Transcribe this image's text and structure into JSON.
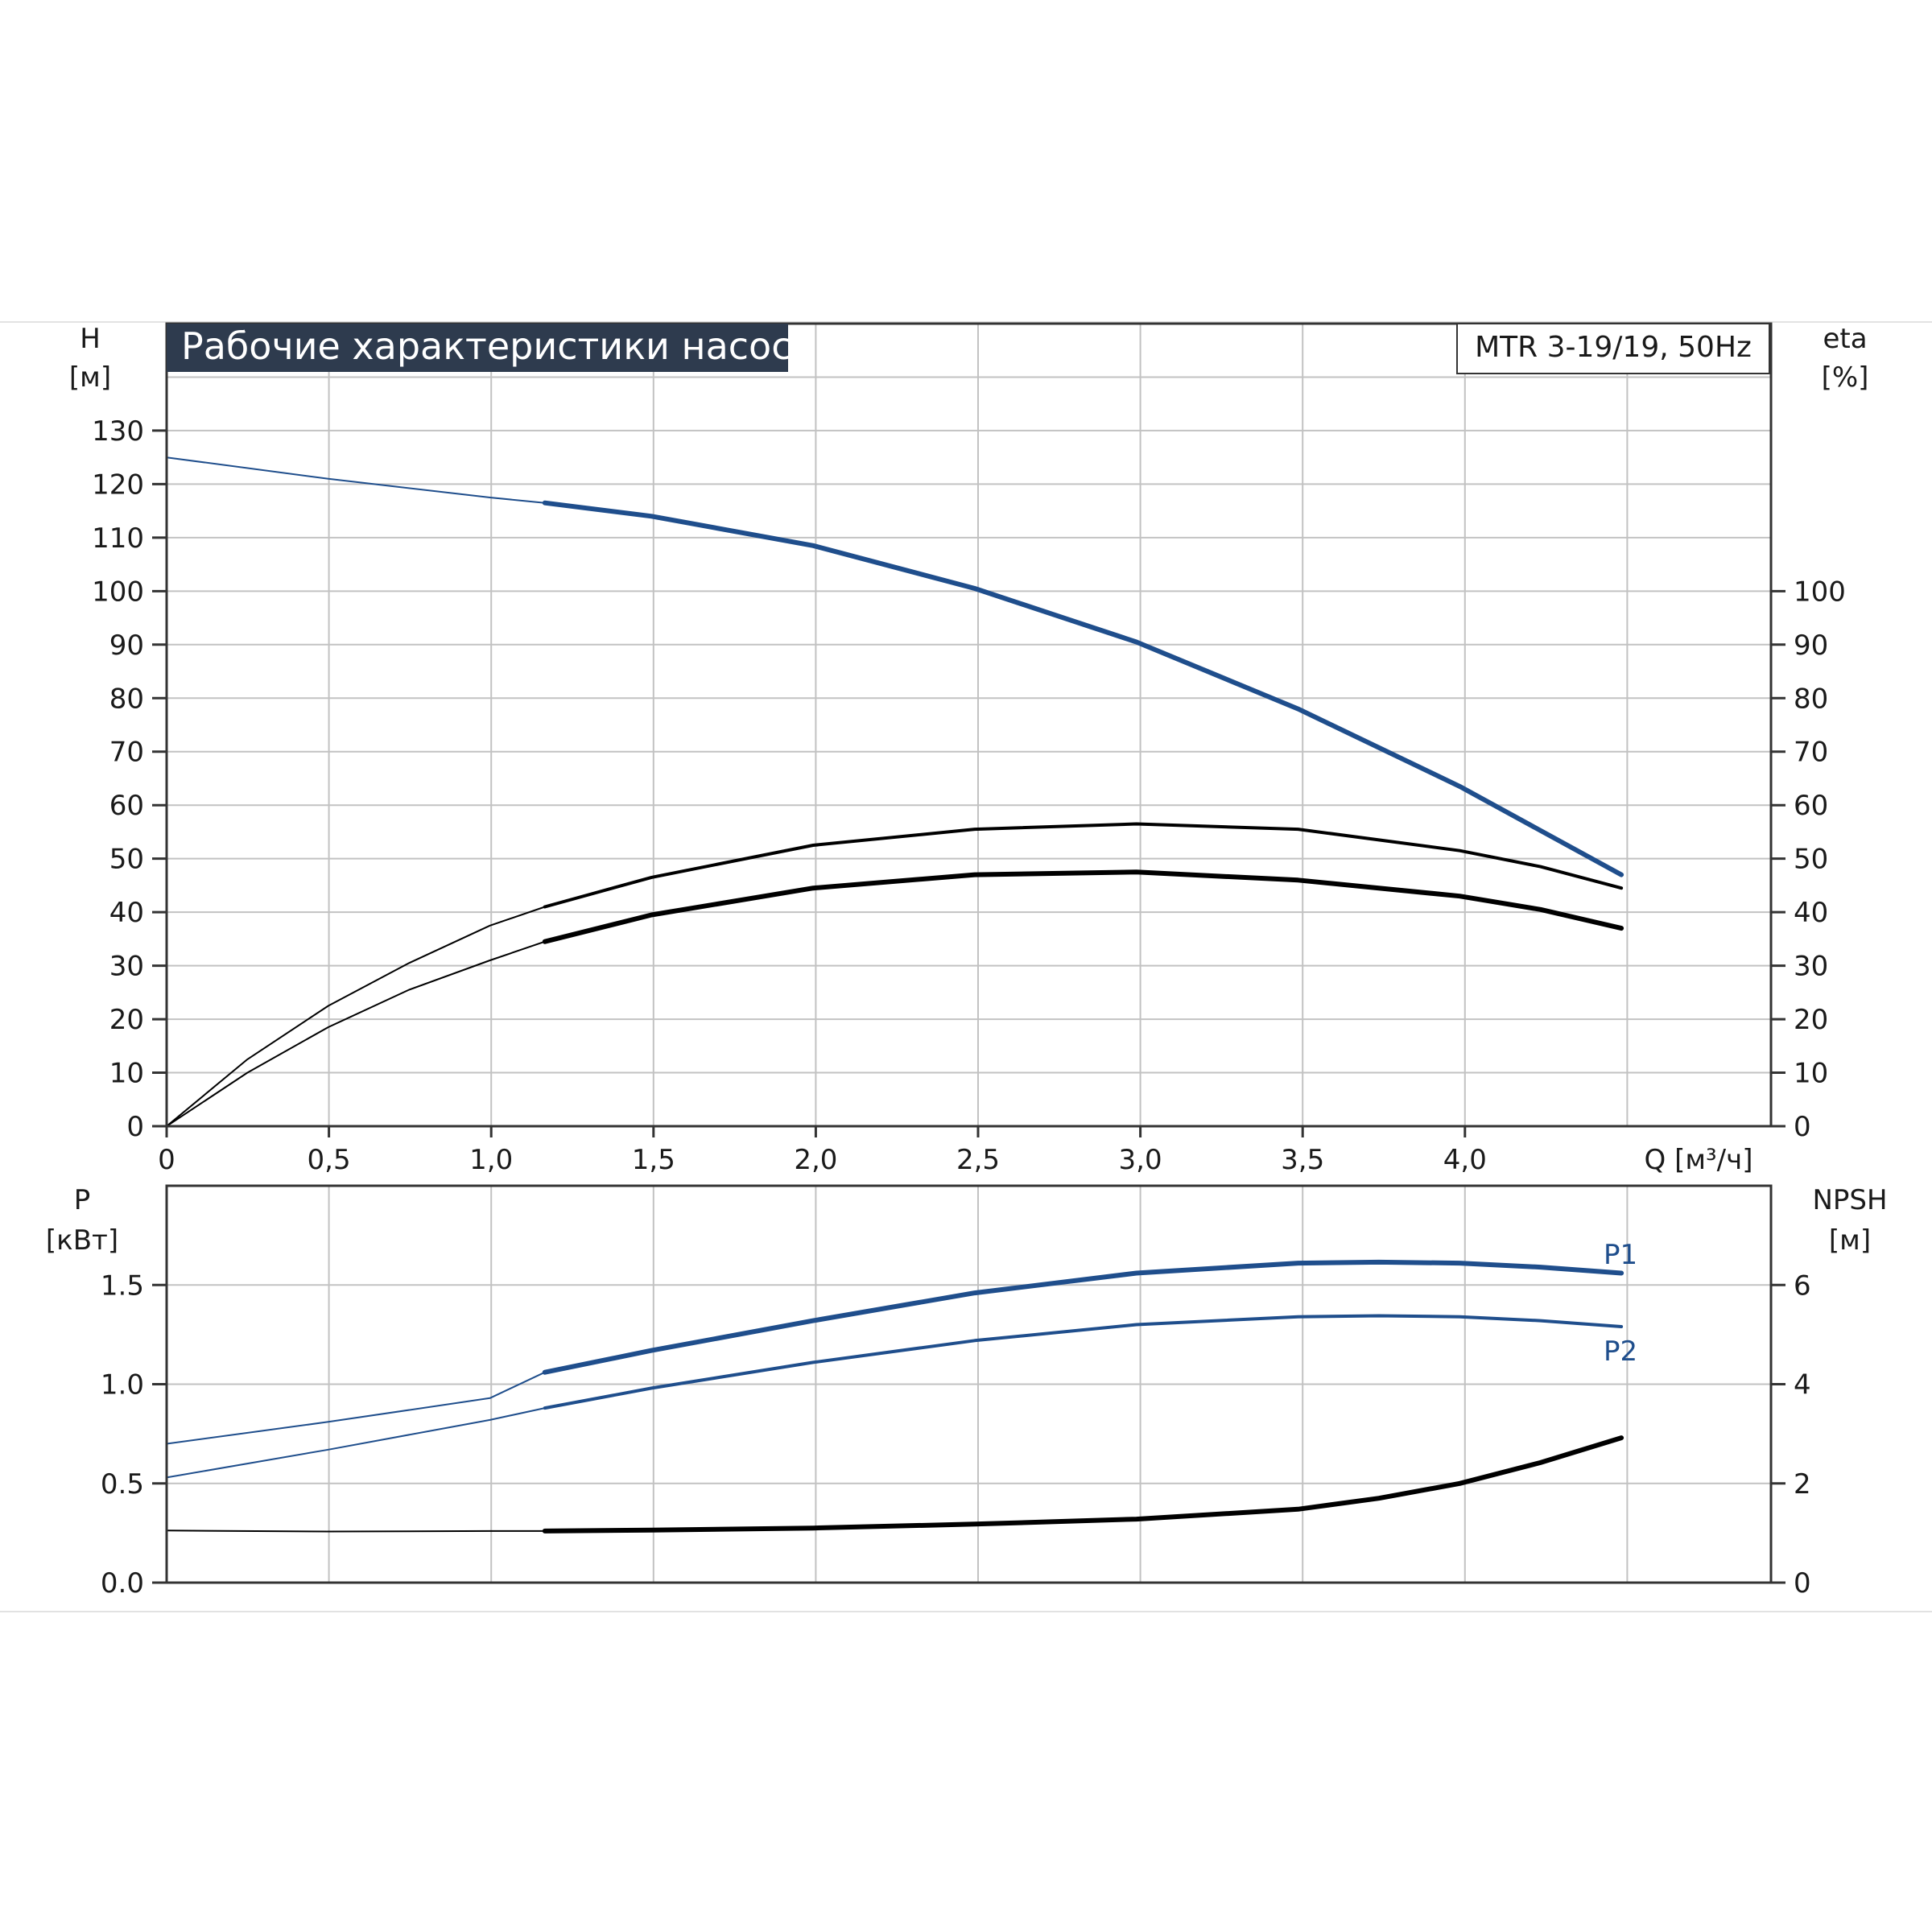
{
  "chart_data": [
    {
      "type": "line",
      "title": "Рабочие характеристики насоса",
      "model_label": "MTR 3-19/19, 50Hz",
      "x_ticks": [
        "0",
        "0,5",
        "1,0",
        "1,5",
        "2,0",
        "2,5",
        "3,0",
        "3,5",
        "4,0"
      ],
      "xlabel": "Q [м³/ч]",
      "xlim": [
        0,
        4.5
      ],
      "y_left": {
        "label_line1": "H",
        "label_line2": "[м]",
        "ylim": [
          0,
          150
        ],
        "ticks": [
          "0",
          "10",
          "20",
          "30",
          "40",
          "50",
          "60",
          "70",
          "80",
          "90",
          "100",
          "110",
          "120",
          "130"
        ]
      },
      "y_right": {
        "label_line1": "eta",
        "label_line2": "[%]",
        "ylim": [
          0,
          150
        ],
        "ticks": [
          "0",
          "10",
          "20",
          "30",
          "40",
          "50",
          "60",
          "70",
          "80",
          "90",
          "100"
        ]
      },
      "grid": true,
      "series": [
        {
          "axis": "left",
          "color": "#1f4e8c",
          "width": 5,
          "opacity_before": 1.17,
          "x": [
            0,
            0.5,
            1.0,
            1.17,
            1.5,
            2.0,
            2.5,
            3.0,
            3.5,
            4.0,
            4.5
          ],
          "y": [
            125,
            121,
            117.5,
            116.5,
            114,
            108.5,
            100.5,
            90.5,
            78,
            63.5,
            47
          ]
        },
        {
          "axis": "right",
          "color": "#000000",
          "width": 3,
          "x": [
            0,
            0.25,
            0.5,
            0.75,
            1.0,
            1.17,
            1.5,
            2.0,
            2.5,
            3.0,
            3.5,
            4.0,
            4.25,
            4.5
          ],
          "y": [
            0,
            12.5,
            22.5,
            30.5,
            37.5,
            41,
            46.5,
            52.5,
            55.5,
            56.5,
            55.5,
            51.5,
            48.5,
            44.5
          ]
        },
        {
          "axis": "right",
          "color": "#000000",
          "width": 5,
          "x": [
            0,
            0.25,
            0.5,
            0.75,
            1.0,
            1.17,
            1.5,
            2.0,
            2.5,
            3.0,
            3.5,
            4.0,
            4.25,
            4.5
          ],
          "y": [
            0,
            10,
            18.5,
            25.5,
            31,
            34.5,
            39.5,
            44.5,
            47,
            47.5,
            46,
            43,
            40.5,
            37
          ]
        }
      ]
    },
    {
      "type": "line",
      "x_ticks": [],
      "xlim": [
        0,
        4.5
      ],
      "y_left": {
        "label_line1": "P",
        "label_line2": "[кВт]",
        "ylim": [
          0,
          2.0
        ],
        "ticks": [
          "0.0",
          "0.5",
          "1.0",
          "1.5"
        ]
      },
      "y_right": {
        "label_line1": "NPSH",
        "label_line2": "[м]",
        "ylim": [
          0,
          8
        ],
        "ticks": [
          "0",
          "2",
          "4",
          "6"
        ]
      },
      "grid": true,
      "series": [
        {
          "name": "P1",
          "axis": "left",
          "color": "#1f4e8c",
          "width": 5,
          "x": [
            0,
            0.5,
            1.0,
            1.17,
            1.5,
            2.0,
            2.5,
            3.0,
            3.5,
            3.75,
            4.0,
            4.25,
            4.5
          ],
          "y": [
            0.7,
            0.81,
            0.93,
            1.06,
            1.17,
            1.32,
            1.46,
            1.56,
            1.61,
            1.615,
            1.61,
            1.59,
            1.56
          ]
        },
        {
          "name": "P2",
          "axis": "left",
          "color": "#1f4e8c",
          "width": 3,
          "x": [
            0,
            0.5,
            1.0,
            1.17,
            1.5,
            2.0,
            2.5,
            3.0,
            3.5,
            3.75,
            4.0,
            4.25,
            4.5
          ],
          "y": [
            0.53,
            0.67,
            0.82,
            0.88,
            0.98,
            1.11,
            1.22,
            1.3,
            1.34,
            1.345,
            1.34,
            1.32,
            1.29
          ]
        },
        {
          "axis": "right",
          "color": "#000000",
          "width": 5,
          "x": [
            0,
            0.5,
            1.0,
            1.17,
            1.5,
            2.0,
            2.5,
            3.0,
            3.5,
            3.75,
            4.0,
            4.25,
            4.5
          ],
          "y": [
            1.05,
            1.03,
            1.04,
            1.04,
            1.06,
            1.1,
            1.18,
            1.28,
            1.48,
            1.7,
            2.0,
            2.42,
            2.92
          ]
        }
      ]
    }
  ]
}
